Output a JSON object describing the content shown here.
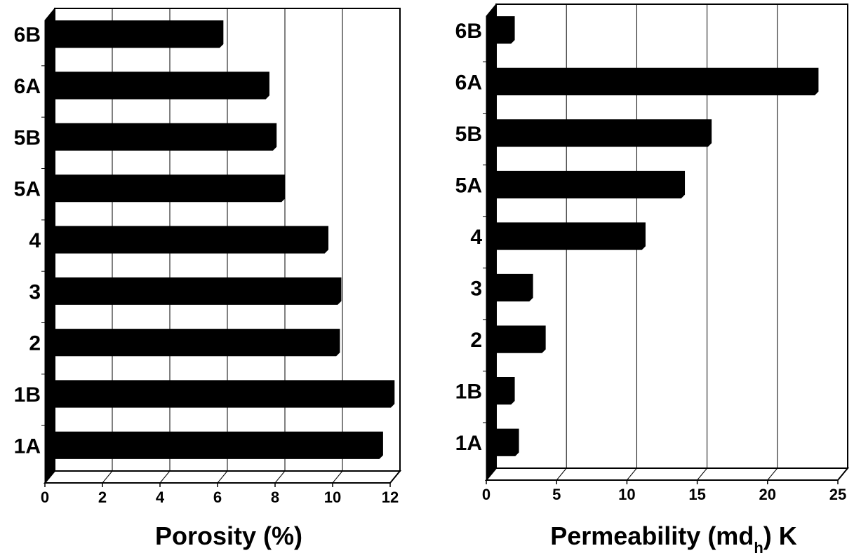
{
  "chart_data": [
    {
      "type": "bar",
      "orientation": "horizontal",
      "categories": [
        "1A",
        "1B",
        "2",
        "3",
        "4",
        "5A",
        "5B",
        "6A",
        "6B"
      ],
      "values": [
        11.4,
        11.8,
        9.9,
        9.95,
        9.5,
        8.0,
        7.7,
        7.45,
        5.85
      ],
      "xlabel": "Porosity (%)",
      "xlim": [
        0,
        12
      ],
      "xticks": [
        0,
        2,
        4,
        6,
        8,
        10,
        12
      ],
      "grid": "vertical",
      "bar_color": "#000000",
      "style": "3d"
    },
    {
      "type": "bar",
      "orientation": "horizontal",
      "categories": [
        "1A",
        "1B",
        "2",
        "3",
        "4",
        "5A",
        "5B",
        "6A",
        "6B"
      ],
      "values": [
        1.6,
        1.3,
        3.5,
        2.6,
        10.6,
        13.4,
        15.3,
        22.9,
        1.3
      ],
      "xlabel": "Permeability (md), K",
      "xlabel_main": "Permeability (md",
      "xlabel_sub": "h",
      "xlabel_end": ") K",
      "xlim": [
        0,
        25
      ],
      "xticks": [
        0,
        5,
        10,
        15,
        20,
        25
      ],
      "grid": "vertical",
      "bar_color": "#000000",
      "style": "3d"
    }
  ]
}
